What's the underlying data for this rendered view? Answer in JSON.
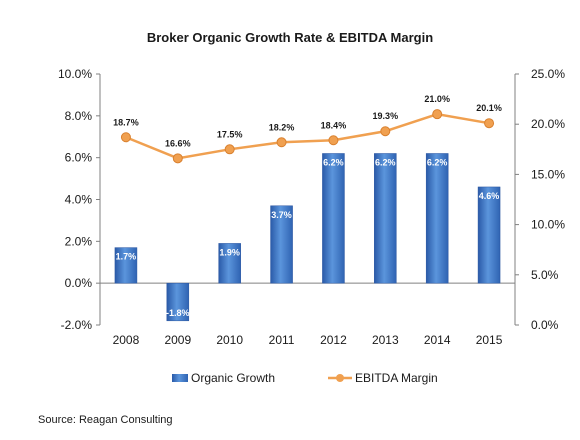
{
  "title": "Broker Organic Growth Rate & EBITDA Margin",
  "source": "Source:  Reagan Consulting",
  "chart_data": {
    "type": "bar",
    "title": "Broker Organic Growth Rate & EBITDA Margin",
    "categories": [
      "2008",
      "2009",
      "2010",
      "2011",
      "2012",
      "2013",
      "2014",
      "2015"
    ],
    "series": [
      {
        "name": "Organic Growth",
        "type": "bar",
        "axis": "left",
        "values": [
          1.7,
          -1.8,
          1.9,
          3.7,
          6.2,
          6.2,
          6.2,
          4.6
        ],
        "labels": [
          "1.7%",
          "-1.8%",
          "1.9%",
          "3.7%",
          "6.2%",
          "6.2%",
          "6.2%",
          "4.6%"
        ],
        "color": "#3f78c6"
      },
      {
        "name": "EBITDA Margin",
        "type": "line",
        "axis": "right",
        "values": [
          18.7,
          16.6,
          17.5,
          18.2,
          18.4,
          19.3,
          21.0,
          20.1
        ],
        "labels": [
          "18.7%",
          "16.6%",
          "17.5%",
          "18.2%",
          "18.4%",
          "19.3%",
          "21.0%",
          "20.1%"
        ],
        "color": "#f0a050"
      }
    ],
    "y_left": {
      "range": [
        -2.0,
        10.0
      ],
      "ticks": [
        10.0,
        8.0,
        6.0,
        4.0,
        2.0,
        0.0,
        -2.0
      ],
      "tick_labels": [
        "10.0%",
        "8.0%",
        "6.0%",
        "4.0%",
        "2.0%",
        "0.0%",
        "-2.0%"
      ]
    },
    "y_right": {
      "range": [
        0.0,
        25.0
      ],
      "ticks": [
        25.0,
        20.0,
        15.0,
        10.0,
        5.0,
        0.0
      ],
      "tick_labels": [
        "25.0%",
        "20.0%",
        "15.0%",
        "10.0%",
        "5.0%",
        "0.0%"
      ]
    },
    "grid": false,
    "legend_position": "bottom"
  }
}
